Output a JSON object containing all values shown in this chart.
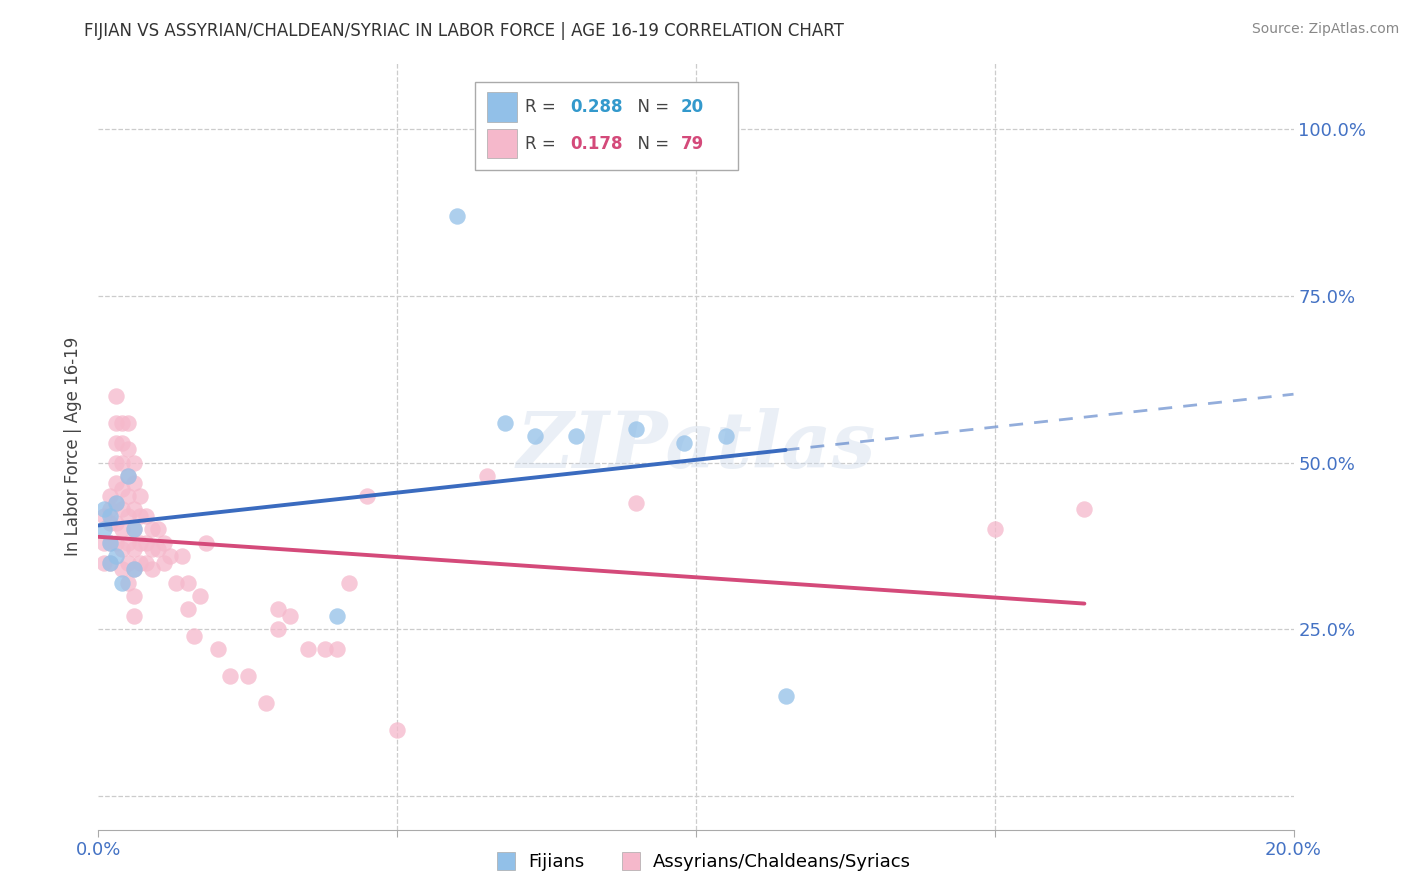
{
  "title": "FIJIAN VS ASSYRIAN/CHALDEAN/SYRIAC IN LABOR FORCE | AGE 16-19 CORRELATION CHART",
  "source": "Source: ZipAtlas.com",
  "ylabel": "In Labor Force | Age 16-19",
  "xlim": [
    0.0,
    0.2
  ],
  "ylim": [
    -0.05,
    1.1
  ],
  "blue_r": 0.288,
  "blue_n": 20,
  "pink_r": 0.178,
  "pink_n": 79,
  "blue_color": "#92c0e8",
  "pink_color": "#f5b8cb",
  "blue_line_color": "#3a6bbf",
  "pink_line_color": "#d44a7a",
  "grid_color": "#cccccc",
  "background_color": "#ffffff",
  "watermark": "ZIPatlas",
  "legend_label_blue": "Fijians",
  "legend_label_pink": "Assyrians/Chaldeans/Syriacs",
  "blue_x": [
    0.001,
    0.001,
    0.002,
    0.002,
    0.002,
    0.003,
    0.003,
    0.004,
    0.005,
    0.006,
    0.006,
    0.04,
    0.06,
    0.068,
    0.073,
    0.08,
    0.09,
    0.098,
    0.105,
    0.115
  ],
  "blue_y": [
    0.4,
    0.43,
    0.42,
    0.38,
    0.35,
    0.44,
    0.36,
    0.32,
    0.48,
    0.4,
    0.34,
    0.27,
    0.87,
    0.56,
    0.54,
    0.54,
    0.55,
    0.53,
    0.54,
    0.15
  ],
  "pink_x": [
    0.001,
    0.001,
    0.001,
    0.002,
    0.002,
    0.002,
    0.002,
    0.002,
    0.003,
    0.003,
    0.003,
    0.003,
    0.003,
    0.003,
    0.003,
    0.003,
    0.004,
    0.004,
    0.004,
    0.004,
    0.004,
    0.004,
    0.004,
    0.004,
    0.005,
    0.005,
    0.005,
    0.005,
    0.005,
    0.005,
    0.005,
    0.005,
    0.006,
    0.006,
    0.006,
    0.006,
    0.006,
    0.006,
    0.006,
    0.006,
    0.007,
    0.007,
    0.007,
    0.007,
    0.008,
    0.008,
    0.008,
    0.009,
    0.009,
    0.009,
    0.01,
    0.01,
    0.011,
    0.011,
    0.012,
    0.013,
    0.014,
    0.015,
    0.015,
    0.016,
    0.017,
    0.018,
    0.02,
    0.022,
    0.025,
    0.028,
    0.03,
    0.03,
    0.032,
    0.035,
    0.038,
    0.04,
    0.042,
    0.045,
    0.05,
    0.065,
    0.09,
    0.15,
    0.165
  ],
  "pink_y": [
    0.42,
    0.38,
    0.35,
    0.45,
    0.43,
    0.41,
    0.38,
    0.35,
    0.6,
    0.56,
    0.53,
    0.5,
    0.47,
    0.44,
    0.41,
    0.38,
    0.56,
    0.53,
    0.5,
    0.46,
    0.43,
    0.4,
    0.37,
    0.34,
    0.56,
    0.52,
    0.48,
    0.45,
    0.42,
    0.38,
    0.35,
    0.32,
    0.5,
    0.47,
    0.43,
    0.4,
    0.37,
    0.34,
    0.3,
    0.27,
    0.45,
    0.42,
    0.38,
    0.35,
    0.42,
    0.38,
    0.35,
    0.4,
    0.37,
    0.34,
    0.4,
    0.37,
    0.38,
    0.35,
    0.36,
    0.32,
    0.36,
    0.32,
    0.28,
    0.24,
    0.3,
    0.38,
    0.22,
    0.18,
    0.18,
    0.14,
    0.28,
    0.25,
    0.27,
    0.22,
    0.22,
    0.22,
    0.32,
    0.45,
    0.1,
    0.48,
    0.44,
    0.4,
    0.43
  ]
}
